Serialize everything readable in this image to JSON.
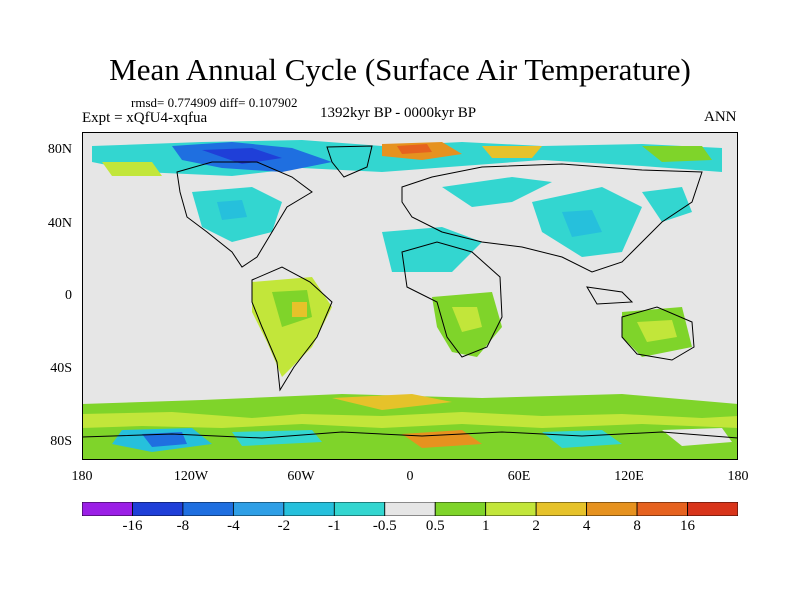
{
  "title": "Mean Annual Cycle (Surface Air Temperature)",
  "stats_line": "rmsd= 0.774909 diff= 0.107902",
  "experiment_label": "Expt = xQfU4-xqfua",
  "period_label": "1392kyr BP - 0000kyr BP",
  "season_label": "ANN",
  "y_axis_labels": [
    "80N",
    "40N",
    "0",
    "40S",
    "80S"
  ],
  "x_axis_labels": [
    "180",
    "120W",
    "60W",
    "0",
    "60E",
    "120E",
    "180"
  ],
  "colorbar": {
    "labels": [
      "-16",
      "-8",
      "-4",
      "-2",
      "-1",
      "-0.5",
      "0.5",
      "1",
      "2",
      "4",
      "8",
      "16"
    ],
    "colors": [
      "#9b1fe6",
      "#1f3fd8",
      "#1f6fe0",
      "#2f9fe6",
      "#26c0dc",
      "#33d6d0",
      "#e6e6e6",
      "#7fd42a",
      "#c2e63a",
      "#e6c22a",
      "#e6921f",
      "#e6621f",
      "#d8341a"
    ]
  }
}
